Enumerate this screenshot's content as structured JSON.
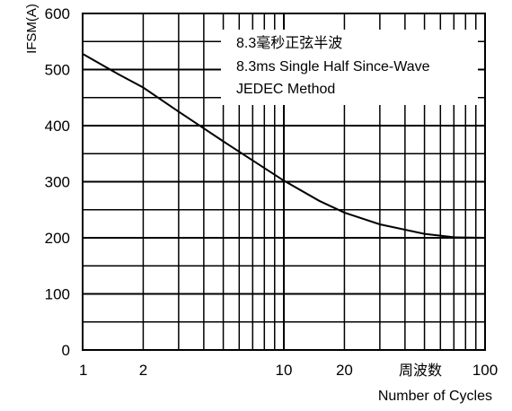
{
  "chart_data": {
    "type": "line",
    "title": "",
    "xlabel": "Number of Cycles",
    "xlabel_cn": "周波数",
    "ylabel": "IFSM(A)",
    "x_scale": "log",
    "xlim": [
      1,
      100
    ],
    "ylim": [
      0,
      600
    ],
    "y_ticks": [
      "0",
      "100",
      "200",
      "300",
      "400",
      "500",
      "600"
    ],
    "x_ticks": [
      "1",
      "2",
      "10",
      "20",
      "100"
    ],
    "grid": true,
    "annotation": [
      "8.3毫秒正弦半波",
      "8.3ms Single Half Since-Wave",
      "JEDEC Method"
    ],
    "series": [
      {
        "x": [
          1,
          1.5,
          2,
          3,
          4,
          5,
          7,
          10,
          15,
          20,
          30,
          50,
          70,
          100
        ],
        "y": [
          528,
          492,
          468,
          425,
          395,
          372,
          338,
          302,
          266,
          245,
          224,
          207,
          201,
          200
        ]
      }
    ]
  }
}
